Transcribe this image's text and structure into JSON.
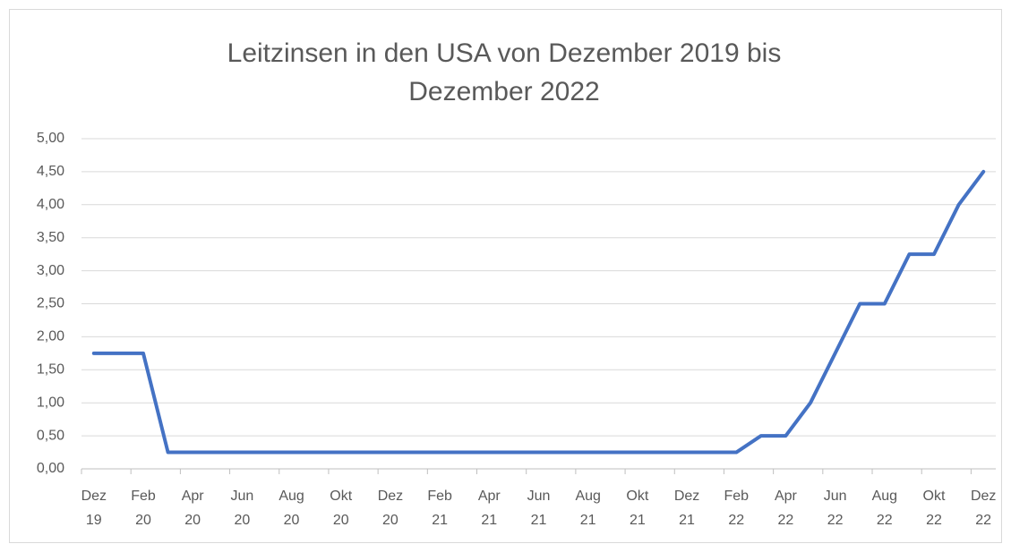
{
  "chart_data": {
    "type": "line",
    "title": "Leitzinsen in den USA von Dezember 2019 bis Dezember 2022",
    "categories": [
      "Dez 19",
      null,
      "Feb 20",
      null,
      "Apr 20",
      null,
      "Jun 20",
      null,
      "Aug 20",
      null,
      "Okt 20",
      null,
      "Dez 20",
      null,
      "Feb 21",
      null,
      "Apr 21",
      null,
      "Jun 21",
      null,
      "Aug 21",
      null,
      "Okt 21",
      null,
      "Dez 21",
      null,
      "Feb 22",
      null,
      "Apr 22",
      null,
      "Jun 22",
      null,
      "Aug 22",
      null,
      "Okt 22",
      null,
      "Dez 22"
    ],
    "series": [
      {
        "color": "#4472c4",
        "values": [
          1.75,
          1.75,
          1.75,
          0.25,
          0.25,
          0.25,
          0.25,
          0.25,
          0.25,
          0.25,
          0.25,
          0.25,
          0.25,
          0.25,
          0.25,
          0.25,
          0.25,
          0.25,
          0.25,
          0.25,
          0.25,
          0.25,
          0.25,
          0.25,
          0.25,
          0.25,
          0.25,
          0.5,
          0.5,
          1.0,
          1.75,
          2.5,
          2.5,
          3.25,
          3.25,
          4.0,
          4.5
        ]
      }
    ],
    "ylim": [
      0,
      5
    ],
    "yticks": [
      {
        "value": 0,
        "label": "0,00"
      },
      {
        "value": 0.5,
        "label": "0,50"
      },
      {
        "value": 1,
        "label": "1,00"
      },
      {
        "value": 1.5,
        "label": "1,50"
      },
      {
        "value": 2,
        "label": "2,00"
      },
      {
        "value": 2.5,
        "label": "2,50"
      },
      {
        "value": 3,
        "label": "3,00"
      },
      {
        "value": 3.5,
        "label": "3,50"
      },
      {
        "value": 4,
        "label": "4,00"
      },
      {
        "value": 4.5,
        "label": "4,50"
      },
      {
        "value": 5,
        "label": "5,00"
      }
    ],
    "grid": true
  }
}
